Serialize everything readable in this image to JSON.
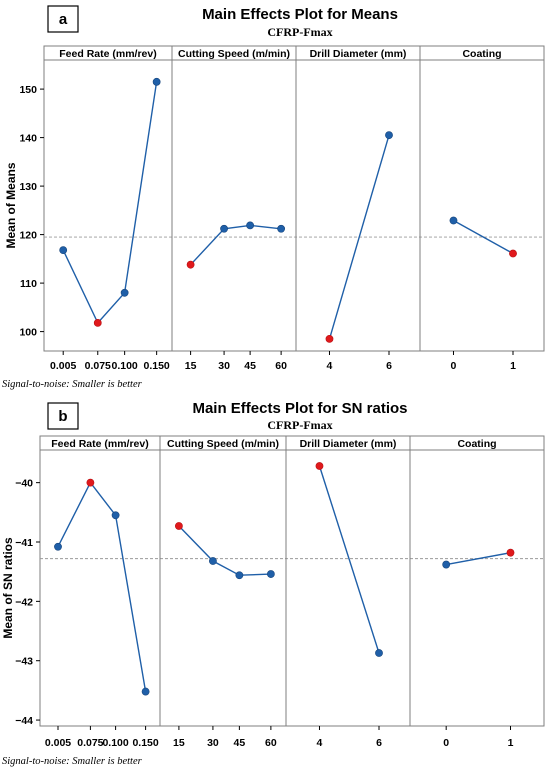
{
  "figure": {
    "panels": [
      "a",
      "b"
    ],
    "footnote": "Signal-to-noise: Smaller is better"
  },
  "colors": {
    "line": "#1f5fa8",
    "point": "#1f5fa8",
    "highlight": "#e0191c",
    "reference": "#9a9a9a",
    "frame": "#7f7f7f",
    "header_bg": "#ffffff"
  },
  "chart_data": [
    {
      "type": "line",
      "panel_label": "a",
      "title": "Main Effects Plot for Means",
      "subtitle": "CFRP-Fmax",
      "ylabel": "Mean of Means",
      "ylim": [
        96,
        156
      ],
      "yticks": [
        100,
        110,
        120,
        130,
        140,
        150
      ],
      "reference_line": 119.5,
      "facets": [
        {
          "name": "Feed Rate (mm/rev)",
          "categories": [
            "0.005",
            "0.075",
            "0.100",
            "0.150"
          ],
          "values": [
            116.8,
            101.8,
            108.0,
            151.5
          ],
          "highlight_index": 1
        },
        {
          "name": "Cutting Speed (m/min)",
          "categories": [
            "15",
            "30",
            "45",
            "60"
          ],
          "values": [
            113.8,
            121.2,
            121.9,
            121.2
          ],
          "highlight_index": 0
        },
        {
          "name": "Drill Diameter (mm)",
          "categories": [
            "4",
            "6"
          ],
          "values": [
            98.5,
            140.5
          ],
          "highlight_index": 0
        },
        {
          "name": "Coating",
          "categories": [
            "0",
            "1"
          ],
          "values": [
            122.9,
            116.1
          ],
          "highlight_index": 1
        }
      ]
    },
    {
      "type": "line",
      "panel_label": "b",
      "title": "Main Effects Plot for SN ratios",
      "subtitle": "CFRP-Fmax",
      "ylabel": "Mean of SN ratios",
      "ylim": [
        -44.1,
        -39.45
      ],
      "yticks": [
        -40,
        -41,
        -42,
        -43,
        -44
      ],
      "reference_line": -41.28,
      "facets": [
        {
          "name": "Feed Rate (mm/rev)",
          "categories": [
            "0.005",
            "0.075",
            "0.100",
            "0.150"
          ],
          "values": [
            -41.08,
            -40.0,
            -40.55,
            -43.52
          ],
          "highlight_index": 1
        },
        {
          "name": "Cutting Speed (m/min)",
          "categories": [
            "15",
            "30",
            "45",
            "60"
          ],
          "values": [
            -40.73,
            -41.32,
            -41.56,
            -41.54
          ],
          "highlight_index": 0
        },
        {
          "name": "Drill Diameter (mm)",
          "categories": [
            "4",
            "6"
          ],
          "values": [
            -39.72,
            -42.87
          ],
          "highlight_index": 0
        },
        {
          "name": "Coating",
          "categories": [
            "0",
            "1"
          ],
          "values": [
            -41.38,
            -41.18
          ],
          "highlight_index": 1
        }
      ]
    }
  ]
}
